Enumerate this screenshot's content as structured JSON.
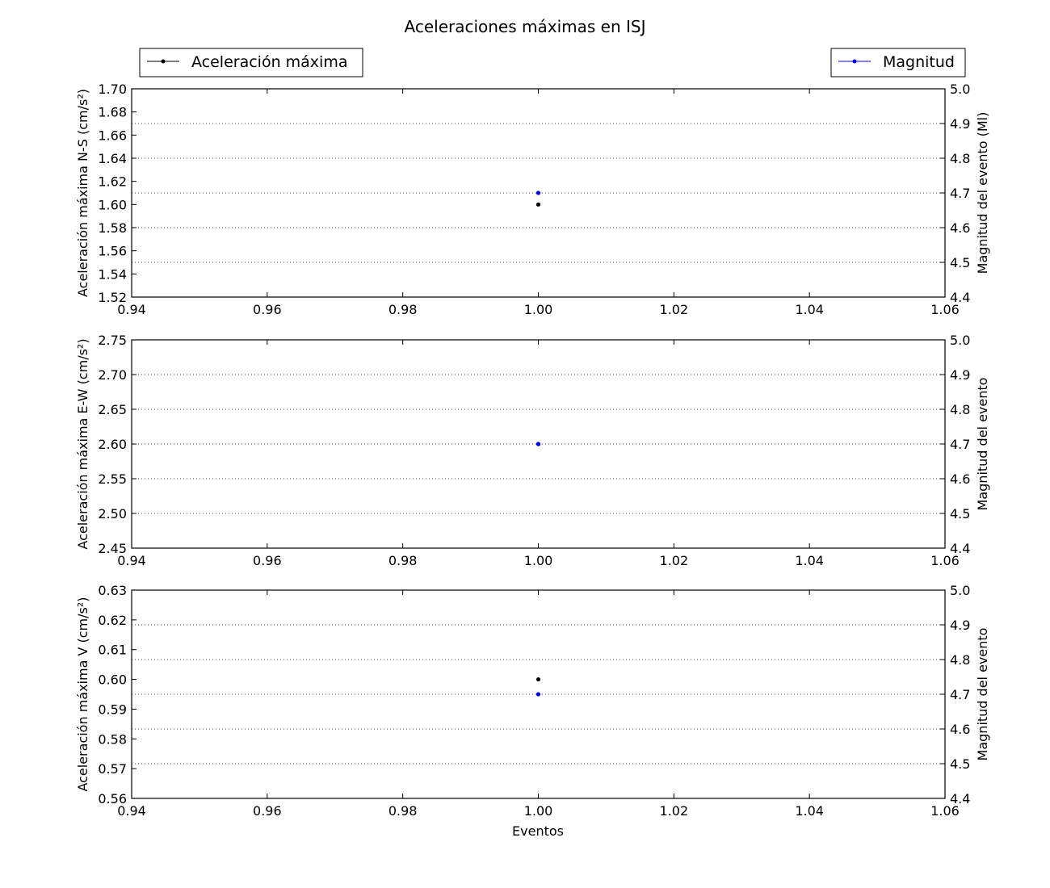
{
  "title": "Aceleraciones máximas en ISJ",
  "legend": {
    "left": {
      "label": "Aceleración máxima",
      "color": "#000000",
      "placement": "top-left"
    },
    "right": {
      "label": "Magnitud",
      "color": "#0000ff",
      "placement": "top-right"
    }
  },
  "xlabel": "Eventos",
  "chart_data": [
    {
      "type": "scatter",
      "xlim": [
        0.94,
        1.06
      ],
      "xticks": [
        "0.94",
        "0.96",
        "0.98",
        "1.00",
        "1.02",
        "1.04",
        "1.06"
      ],
      "ylabel_left": "Aceleración máxima N-S (cm/s²)",
      "ylim_left": [
        1.52,
        1.7
      ],
      "yticks_left": [
        "1.52",
        "1.54",
        "1.56",
        "1.58",
        "1.60",
        "1.62",
        "1.64",
        "1.66",
        "1.68",
        "1.70"
      ],
      "ylabel_right": "Magnitud del evento (Ml)",
      "ylim_right": [
        4.4,
        5.0
      ],
      "yticks_right": [
        "4.4",
        "4.5",
        "4.6",
        "4.7",
        "4.8",
        "4.9",
        "5.0"
      ],
      "grid": "horizontal dotted at right-axis ticks",
      "series": [
        {
          "name": "Aceleración máxima",
          "axis": "left",
          "color": "#000000",
          "x": [
            1.0
          ],
          "y": [
            1.6
          ]
        },
        {
          "name": "Magnitud",
          "axis": "right",
          "color": "#0000ff",
          "x": [
            1.0
          ],
          "y": [
            4.7
          ]
        }
      ]
    },
    {
      "type": "scatter",
      "xlim": [
        0.94,
        1.06
      ],
      "xticks": [
        "0.94",
        "0.96",
        "0.98",
        "1.00",
        "1.02",
        "1.04",
        "1.06"
      ],
      "ylabel_left": "Aceleración máxima E-W (cm/s²)",
      "ylim_left": [
        2.45,
        2.75
      ],
      "yticks_left": [
        "2.45",
        "2.50",
        "2.55",
        "2.60",
        "2.65",
        "2.70",
        "2.75"
      ],
      "ylabel_right": "Magnitud del evento",
      "ylim_right": [
        4.4,
        5.0
      ],
      "yticks_right": [
        "4.4",
        "4.5",
        "4.6",
        "4.7",
        "4.8",
        "4.9",
        "5.0"
      ],
      "grid": "horizontal dotted at right-axis ticks",
      "series": [
        {
          "name": "Aceleración máxima",
          "axis": "left",
          "color": "#000000",
          "x": [
            1.0
          ],
          "y": [
            2.6
          ]
        },
        {
          "name": "Magnitud",
          "axis": "right",
          "color": "#0000ff",
          "x": [
            1.0
          ],
          "y": [
            4.7
          ]
        }
      ]
    },
    {
      "type": "scatter",
      "xlim": [
        0.94,
        1.06
      ],
      "xticks": [
        "0.94",
        "0.96",
        "0.98",
        "1.00",
        "1.02",
        "1.04",
        "1.06"
      ],
      "ylabel_left": "Aceleración máxima V (cm/s²)",
      "ylim_left": [
        0.56,
        0.63
      ],
      "yticks_left": [
        "0.56",
        "0.57",
        "0.58",
        "0.59",
        "0.60",
        "0.61",
        "0.62",
        "0.63"
      ],
      "ylabel_right": "Magnitud del evento",
      "ylim_right": [
        4.4,
        5.0
      ],
      "yticks_right": [
        "4.4",
        "4.5",
        "4.6",
        "4.7",
        "4.8",
        "4.9",
        "5.0"
      ],
      "grid": "horizontal dotted at right-axis ticks",
      "series": [
        {
          "name": "Aceleración máxima",
          "axis": "left",
          "color": "#000000",
          "x": [
            1.0
          ],
          "y": [
            0.6
          ]
        },
        {
          "name": "Magnitud",
          "axis": "right",
          "color": "#0000ff",
          "x": [
            1.0
          ],
          "y": [
            4.7
          ]
        }
      ]
    }
  ]
}
